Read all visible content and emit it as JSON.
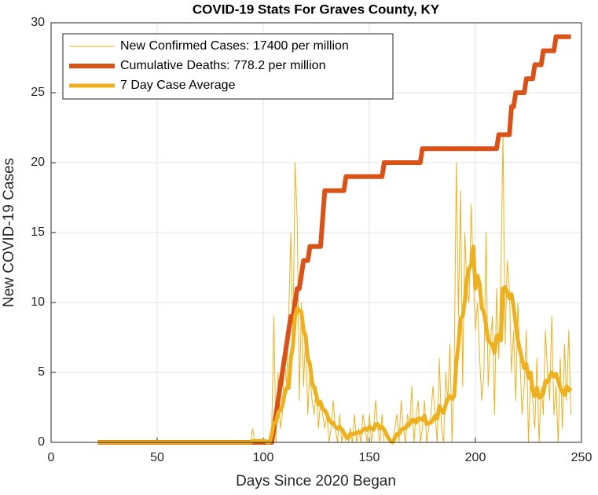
{
  "chart_data": {
    "type": "line",
    "title": "COVID-19 Stats For Graves County, KY",
    "xlabel": "Days Since 2020 Began",
    "ylabel": "New COVID-19 Cases",
    "xlim": [
      0,
      250
    ],
    "xticks": [
      0,
      50,
      100,
      150,
      200,
      250
    ],
    "ylim": [
      0,
      30
    ],
    "yticks": [
      0,
      5,
      10,
      15,
      20,
      25,
      30
    ],
    "grid": true,
    "legend": "northwest",
    "x": [
      22,
      23,
      24,
      25,
      26,
      27,
      28,
      29,
      30,
      31,
      32,
      33,
      34,
      35,
      36,
      37,
      38,
      39,
      40,
      41,
      42,
      43,
      44,
      45,
      46,
      47,
      48,
      49,
      50,
      51,
      52,
      53,
      54,
      55,
      56,
      57,
      58,
      59,
      60,
      61,
      62,
      63,
      64,
      65,
      66,
      67,
      68,
      69,
      70,
      71,
      72,
      73,
      74,
      75,
      76,
      77,
      78,
      79,
      80,
      81,
      82,
      83,
      84,
      85,
      86,
      87,
      88,
      89,
      90,
      91,
      92,
      93,
      94,
      95,
      96,
      97,
      98,
      99,
      100,
      101,
      102,
      103,
      104,
      105,
      106,
      107,
      108,
      109,
      110,
      111,
      112,
      113,
      114,
      115,
      116,
      117,
      118,
      119,
      120,
      121,
      122,
      123,
      124,
      125,
      126,
      127,
      128,
      129,
      130,
      131,
      132,
      133,
      134,
      135,
      136,
      137,
      138,
      139,
      140,
      141,
      142,
      143,
      144,
      145,
      146,
      147,
      148,
      149,
      150,
      151,
      152,
      153,
      154,
      155,
      156,
      157,
      158,
      159,
      160,
      161,
      162,
      163,
      164,
      165,
      166,
      167,
      168,
      169,
      170,
      171,
      172,
      173,
      174,
      175,
      176,
      177,
      178,
      179,
      180,
      181,
      182,
      183,
      184,
      185,
      186,
      187,
      188,
      189,
      190,
      191,
      192,
      193,
      194,
      195,
      196,
      197,
      198,
      199,
      200,
      201,
      202,
      203,
      204,
      205,
      206,
      207,
      208,
      209,
      210,
      211,
      212,
      213,
      214,
      215,
      216,
      217,
      218,
      219,
      220,
      221,
      222,
      223,
      224,
      225,
      226,
      227,
      228,
      229,
      230,
      231,
      232,
      233,
      234,
      235,
      236,
      237,
      238,
      239,
      240,
      241,
      242,
      243,
      244,
      245
    ],
    "series": [
      {
        "name": "New Confirmed Cases: 17400 per million",
        "color": "#EDB120",
        "width": 1,
        "values": [
          0,
          0,
          0,
          0,
          0,
          0,
          0,
          0,
          0,
          0,
          0,
          0,
          0,
          0,
          0,
          0,
          0,
          0,
          0,
          0,
          0,
          0,
          0,
          0,
          0,
          0,
          0,
          0,
          0,
          0,
          0,
          0,
          0,
          0,
          0,
          0,
          0,
          0,
          0,
          0,
          0,
          0,
          0,
          0,
          0,
          0,
          0,
          0,
          0,
          0,
          0,
          0,
          0,
          0,
          0,
          0,
          0,
          0,
          0,
          0,
          0,
          0,
          0,
          0,
          0,
          0,
          0,
          0,
          0,
          0,
          0,
          0,
          0,
          1,
          0,
          0,
          0,
          0,
          0,
          0,
          0,
          0,
          1,
          9,
          0,
          5,
          1,
          2,
          6,
          4,
          9,
          15,
          7,
          20,
          16,
          3,
          10,
          4,
          8,
          2,
          5,
          3,
          2,
          4,
          1,
          3,
          2,
          1,
          2,
          0,
          1,
          3,
          1,
          0,
          2,
          0,
          1,
          0,
          0,
          1,
          0,
          2,
          0,
          1,
          0,
          2,
          1,
          0,
          2,
          0,
          1,
          3,
          1,
          0,
          2,
          0,
          0,
          0,
          0,
          0,
          1,
          2,
          0,
          3,
          1,
          0,
          2,
          1,
          4,
          0,
          2,
          3,
          0,
          1,
          3,
          0,
          1,
          2,
          4,
          2,
          0,
          6,
          1,
          0,
          5,
          3,
          7,
          0,
          5,
          20,
          9,
          18,
          4,
          15,
          11,
          10,
          17,
          12,
          8,
          10,
          6,
          3,
          5,
          15,
          4,
          7,
          9,
          2,
          11,
          6,
          12,
          22,
          7,
          13,
          11,
          5,
          8,
          3,
          10,
          6,
          2,
          4,
          8,
          0,
          5,
          3,
          1,
          6,
          0,
          4,
          2,
          8,
          5,
          3,
          9,
          2,
          4,
          0,
          6,
          1,
          7,
          3,
          8,
          2
        ]
      },
      {
        "name": "Cumulative Deaths: 778.2 per million",
        "color": "#D95319",
        "width": 6,
        "values": [
          0,
          0,
          0,
          0,
          0,
          0,
          0,
          0,
          0,
          0,
          0,
          0,
          0,
          0,
          0,
          0,
          0,
          0,
          0,
          0,
          0,
          0,
          0,
          0,
          0,
          0,
          0,
          0,
          0,
          0,
          0,
          0,
          0,
          0,
          0,
          0,
          0,
          0,
          0,
          0,
          0,
          0,
          0,
          0,
          0,
          0,
          0,
          0,
          0,
          0,
          0,
          0,
          0,
          0,
          0,
          0,
          0,
          0,
          0,
          0,
          0,
          0,
          0,
          0,
          0,
          0,
          0,
          0,
          0,
          0,
          0,
          0,
          0,
          0,
          0,
          0,
          0,
          0,
          0,
          0,
          0,
          0,
          0,
          1,
          2,
          3,
          4,
          5,
          6,
          7,
          8,
          9,
          9,
          10,
          11,
          11,
          12,
          13,
          13,
          13,
          14,
          14,
          14,
          14,
          14,
          14,
          16,
          18,
          18,
          18,
          18,
          18,
          18,
          18,
          18,
          18,
          18,
          19,
          19,
          19,
          19,
          19,
          19,
          19,
          19,
          19,
          19,
          19,
          19,
          19,
          19,
          19,
          19,
          19,
          19,
          20,
          20,
          20,
          20,
          20,
          20,
          20,
          20,
          20,
          20,
          20,
          20,
          20,
          20,
          20,
          20,
          20,
          20,
          21,
          21,
          21,
          21,
          21,
          21,
          21,
          21,
          21,
          21,
          21,
          21,
          21,
          21,
          21,
          21,
          21,
          21,
          21,
          21,
          21,
          21,
          21,
          21,
          21,
          21,
          21,
          21,
          21,
          21,
          21,
          21,
          21,
          21,
          21,
          21,
          22,
          22,
          22,
          22,
          22,
          22,
          24,
          24,
          25,
          25,
          25,
          25,
          25,
          26,
          26,
          26,
          26,
          27,
          27,
          27,
          27,
          28,
          28,
          28,
          28,
          28,
          28,
          29,
          29,
          29,
          29,
          29,
          29,
          29,
          29
        ]
      },
      {
        "name": "7 Day Case Average",
        "color": "#EDB120",
        "width": 5,
        "values": [
          0,
          0,
          0,
          0,
          0,
          0,
          0,
          0,
          0,
          0,
          0,
          0,
          0,
          0,
          0,
          0,
          0,
          0,
          0,
          0,
          0,
          0,
          0,
          0,
          0,
          0,
          0,
          0,
          0,
          0,
          0,
          0,
          0,
          0,
          0,
          0,
          0,
          0,
          0,
          0,
          0,
          0,
          0,
          0,
          0,
          0,
          0,
          0,
          0,
          0,
          0,
          0,
          0,
          0,
          0,
          0,
          0,
          0,
          0,
          0,
          0,
          0,
          0,
          0,
          0,
          0,
          0,
          0,
          0,
          0,
          0,
          0,
          0,
          0.1,
          0.1,
          0.1,
          0.1,
          0.1,
          0.1,
          0.1,
          0,
          0,
          0.6,
          1.4,
          1.4,
          2.1,
          2.3,
          2.6,
          3.4,
          3.9,
          3.9,
          6,
          6.9,
          9,
          9.6,
          9.4,
          9.3,
          8,
          7.6,
          6,
          5.6,
          4.3,
          3.9,
          3.4,
          2.7,
          2.9,
          2.4,
          2.3,
          2,
          1.6,
          1.4,
          1.4,
          1.1,
          1,
          1.1,
          0.9,
          0.7,
          0.4,
          0.3,
          0.6,
          0.6,
          0.6,
          0.7,
          0.7,
          0.7,
          0.9,
          1,
          0.9,
          1.1,
          1,
          0.9,
          1.3,
          1.3,
          1,
          1.1,
          0.9,
          0.6,
          0.3,
          0.1,
          0,
          0.3,
          0.6,
          0.6,
          0.9,
          1,
          1,
          1.3,
          1.3,
          1.6,
          1.6,
          1.4,
          1.7,
          1.7,
          1.6,
          1.9,
          1.3,
          1.4,
          1.4,
          1.6,
          1.9,
          1.7,
          2.6,
          2.3,
          2.1,
          2.7,
          3.1,
          3.3,
          3.1,
          3.3,
          5.7,
          7,
          8.9,
          9,
          10.1,
          11.7,
          12.4,
          12.7,
          14,
          11,
          11.9,
          11.3,
          9.6,
          9.3,
          8.4,
          7.3,
          7.1,
          7,
          6.4,
          7.6,
          7.7,
          7.3,
          11,
          11.1,
          10.7,
          10.3,
          10.6,
          9.7,
          8.4,
          7.3,
          6.6,
          5.9,
          5.3,
          5.6,
          4.6,
          5,
          3.7,
          3.3,
          3.9,
          3.2,
          3.3,
          3.5,
          4.4,
          4.3,
          4.7,
          5,
          4.7,
          4.9,
          4.4,
          3.9,
          3.6,
          3.4,
          4,
          3.7,
          3.9
        ]
      }
    ]
  }
}
